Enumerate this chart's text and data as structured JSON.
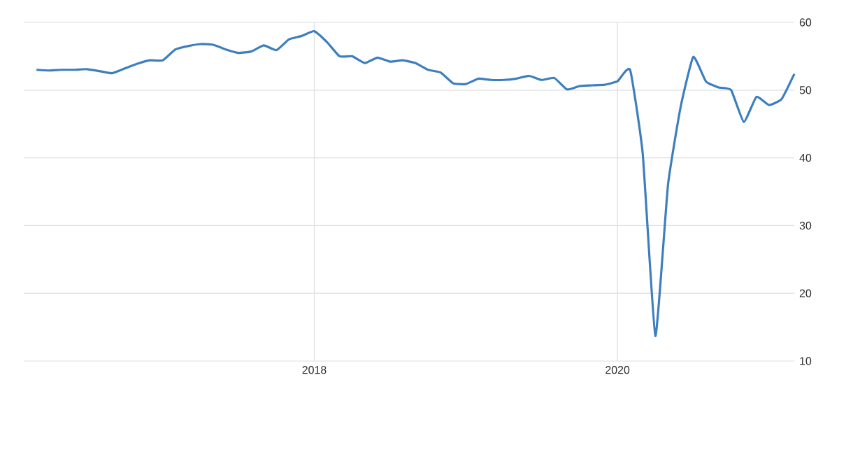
{
  "chart_data": {
    "type": "line",
    "x": [
      "2016-03",
      "2016-04",
      "2016-05",
      "2016-06",
      "2016-07",
      "2016-08",
      "2016-09",
      "2016-10",
      "2016-11",
      "2016-12",
      "2017-01",
      "2017-02",
      "2017-03",
      "2017-04",
      "2017-05",
      "2017-06",
      "2017-07",
      "2017-08",
      "2017-09",
      "2017-10",
      "2017-11",
      "2017-12",
      "2018-01",
      "2018-02",
      "2018-03",
      "2018-04",
      "2018-05",
      "2018-06",
      "2018-07",
      "2018-08",
      "2018-09",
      "2018-10",
      "2018-11",
      "2018-12",
      "2019-01",
      "2019-02",
      "2019-03",
      "2019-04",
      "2019-05",
      "2019-06",
      "2019-07",
      "2019-08",
      "2019-09",
      "2019-10",
      "2019-11",
      "2019-12",
      "2020-01",
      "2020-02",
      "2020-03",
      "2020-04",
      "2020-05",
      "2020-06",
      "2020-07",
      "2020-08",
      "2020-09",
      "2020-10",
      "2020-11",
      "2020-12",
      "2021-01",
      "2021-02",
      "2021-03"
    ],
    "series": [
      {
        "color": "#3d7ebf",
        "values": [
          53.0,
          52.9,
          53.0,
          53.0,
          53.1,
          52.8,
          52.5,
          53.2,
          53.9,
          54.4,
          54.4,
          56.0,
          56.5,
          56.8,
          56.7,
          56.0,
          55.5,
          55.7,
          56.6,
          55.9,
          57.5,
          58.0,
          58.7,
          57.1,
          55.0,
          55.0,
          54.0,
          54.8,
          54.2,
          54.4,
          54.0,
          53.0,
          52.6,
          51.0,
          50.9,
          51.7,
          51.5,
          51.5,
          51.7,
          52.1,
          51.5,
          51.8,
          50.1,
          50.6,
          50.7,
          50.8,
          51.3,
          53.0,
          40.6,
          13.7,
          36.0,
          47.5,
          54.9,
          51.3,
          50.4,
          50.0,
          45.3,
          49.0,
          47.8,
          48.7,
          52.4
        ]
      }
    ],
    "xlim": [
      "2016-02",
      "2021-03"
    ],
    "xticks": [
      {
        "value": "2018-01",
        "label": "2018"
      },
      {
        "value": "2020-01",
        "label": "2020"
      }
    ],
    "ylim": [
      10,
      60
    ],
    "yticks": [
      10,
      20,
      30,
      40,
      50,
      60
    ],
    "grid": true
  }
}
